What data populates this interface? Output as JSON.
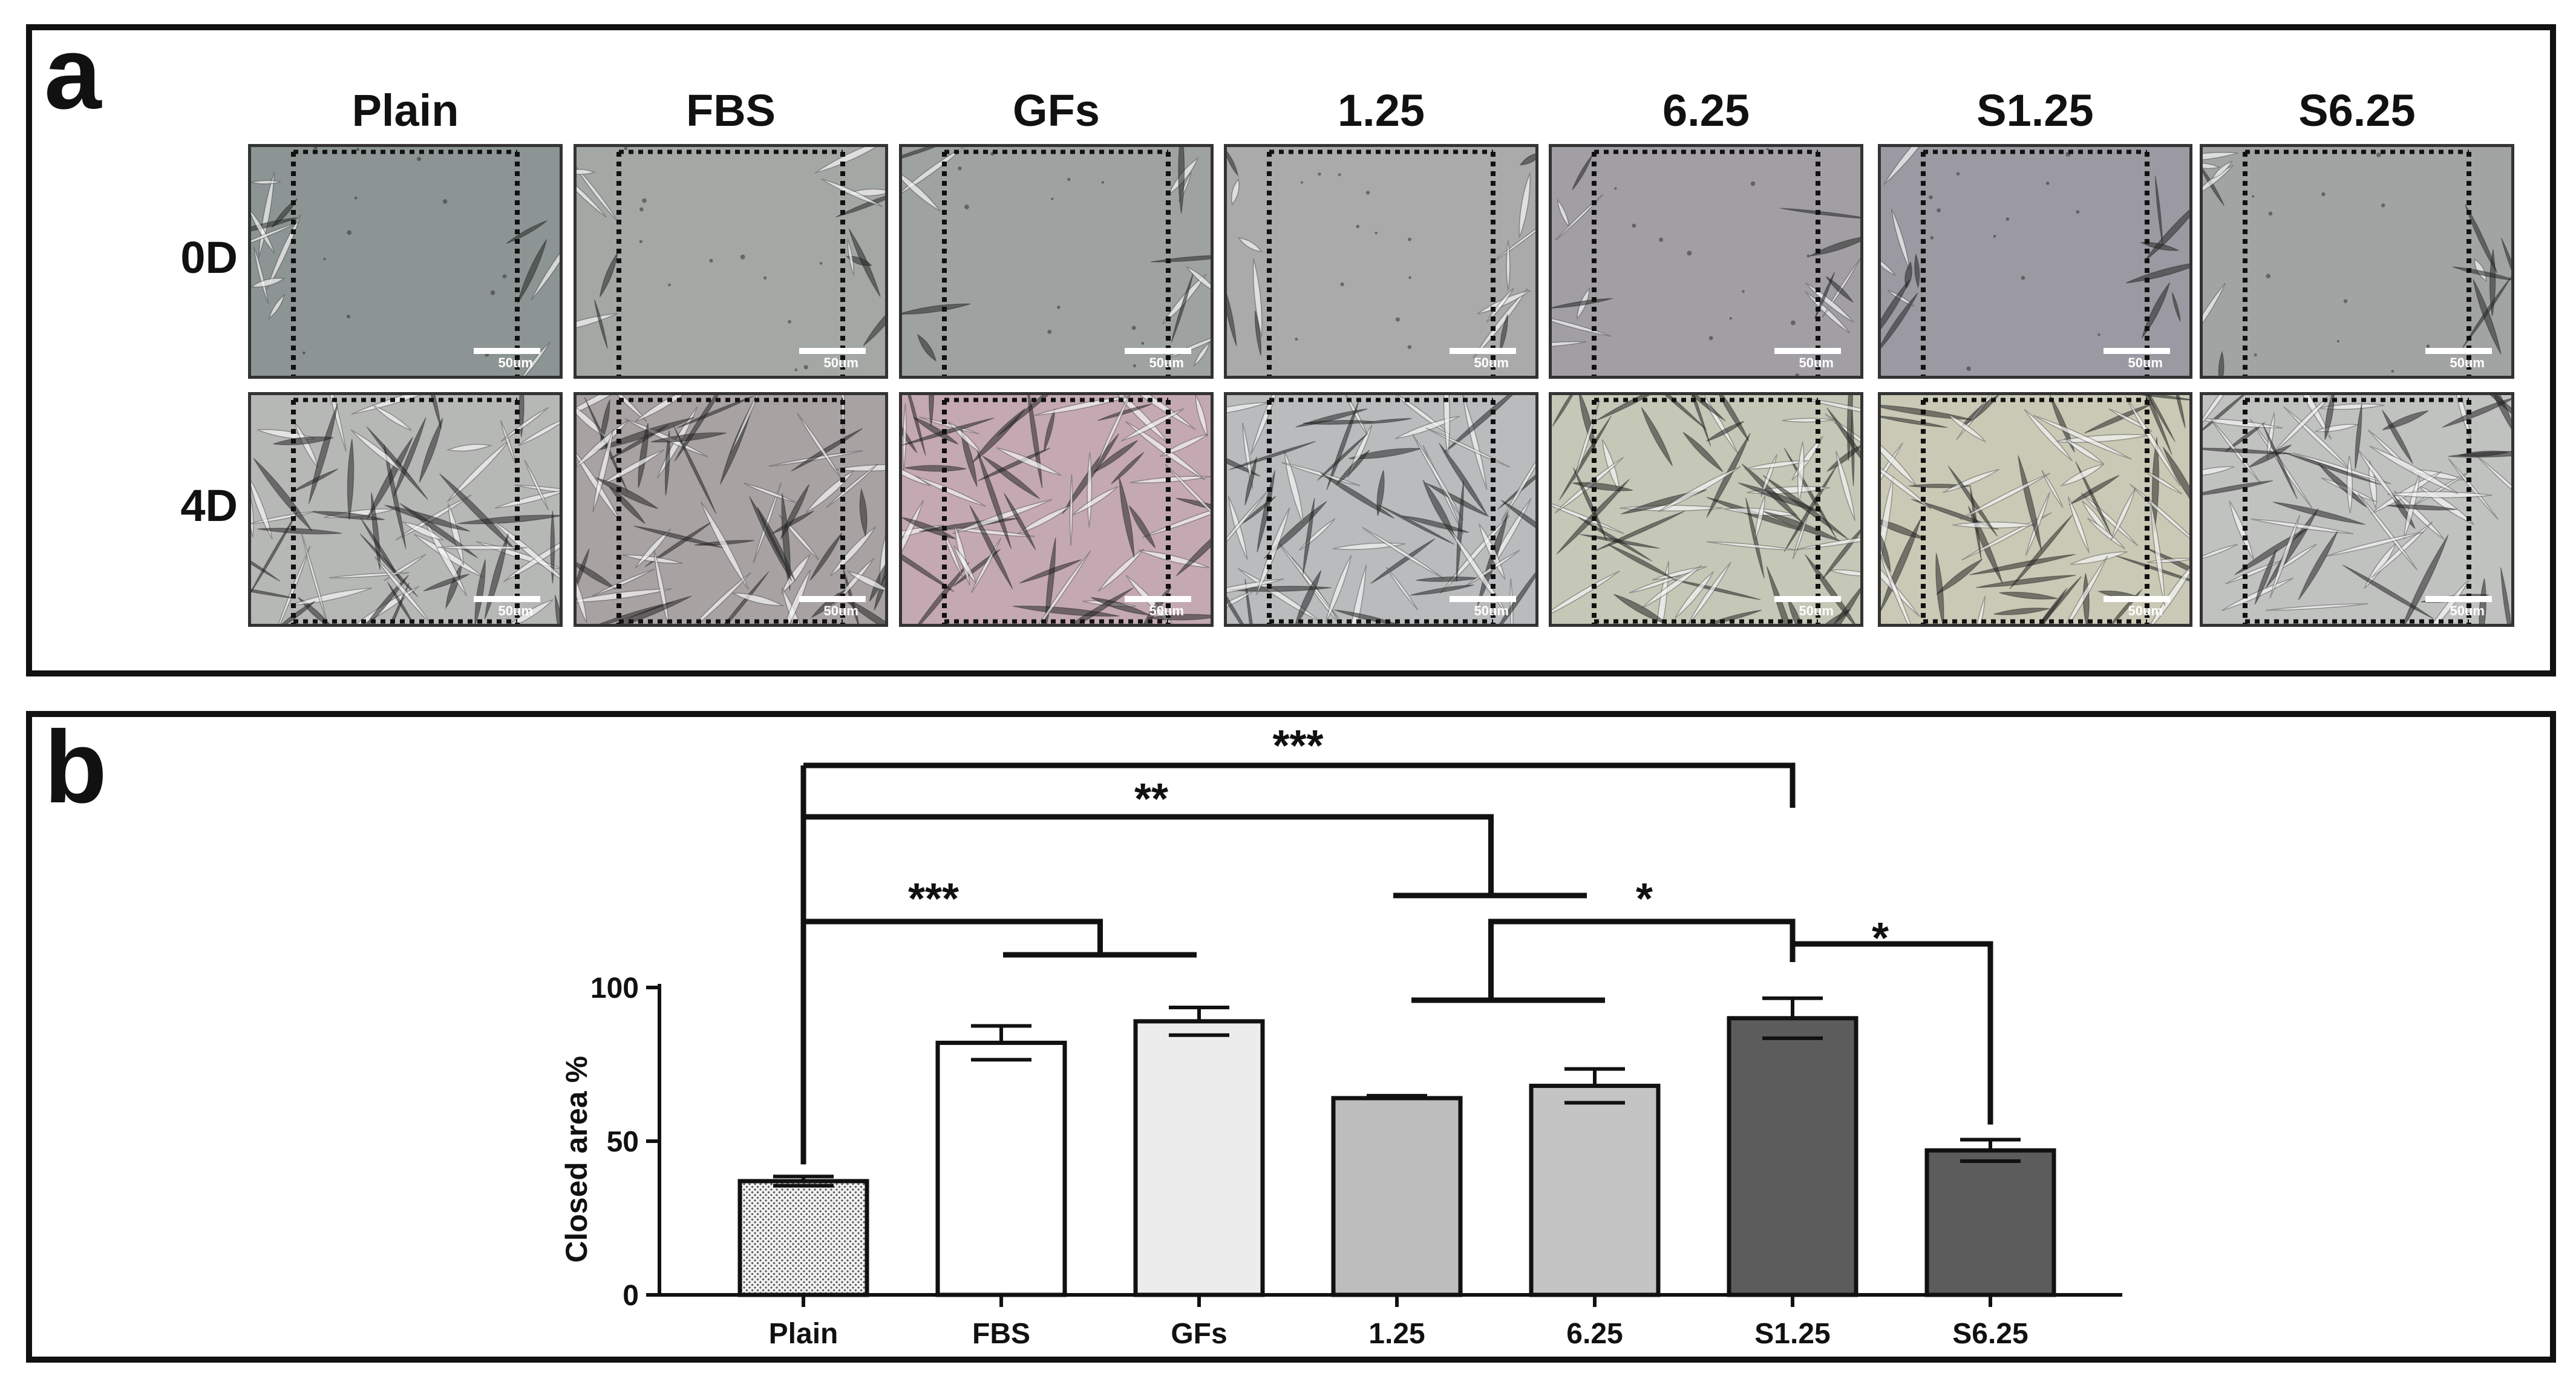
{
  "panel_a": {
    "letter": "a",
    "columns": [
      "Plain",
      "FBS",
      "GFs",
      "1.25",
      "6.25",
      "S1.25",
      "S6.25"
    ],
    "rows": [
      "0D",
      "4D"
    ],
    "scale_label": "50um",
    "tints_0d": [
      "#8c9593",
      "#a4a8a5",
      "#9ea2a0",
      "#a9aaa9",
      "#a19fa3",
      "#9b9aa2",
      "#a2a4a4"
    ],
    "tints_4d": [
      "#b6b8b5",
      "#a8a2a3",
      "#c4a9b2",
      "#b9bbbc",
      "#c5c7b7",
      "#c9c9b6",
      "#bfc2bf"
    ]
  },
  "panel_b": {
    "letter": "b"
  },
  "chart_data": {
    "type": "bar",
    "ylabel": "Closed area %",
    "xlabel": "",
    "ylim": [
      0,
      100
    ],
    "yticks": [
      0,
      50,
      100
    ],
    "categories": [
      "Plain",
      "FBS",
      "GFs",
      "1.25",
      "6.25",
      "S1.25",
      "S6.25"
    ],
    "values": [
      37,
      82,
      89,
      64,
      68,
      90,
      47
    ],
    "errors": [
      1.5,
      5.5,
      4.5,
      0.8,
      5.5,
      6.5,
      3.5
    ],
    "bar_fills": [
      "#e0e0e0",
      "#ffffff",
      "#ececec",
      "#bdbdbd",
      "#c4c4c4",
      "#5c5c5c",
      "#5c5c5c"
    ],
    "bar_patterns": [
      "dots",
      "none",
      "none",
      "none",
      "none",
      "none",
      "none"
    ],
    "significance": [
      {
        "label": "***",
        "from": "Plain",
        "to": "FBS,GFs"
      },
      {
        "label": "**",
        "from": "Plain",
        "to": "1.25,6.25"
      },
      {
        "label": "***",
        "from": "Plain",
        "to": "S1.25"
      },
      {
        "label": "*",
        "from": "1.25,6.25",
        "to": "S1.25"
      },
      {
        "label": "*",
        "from": "S1.25",
        "to": "S6.25"
      }
    ]
  }
}
